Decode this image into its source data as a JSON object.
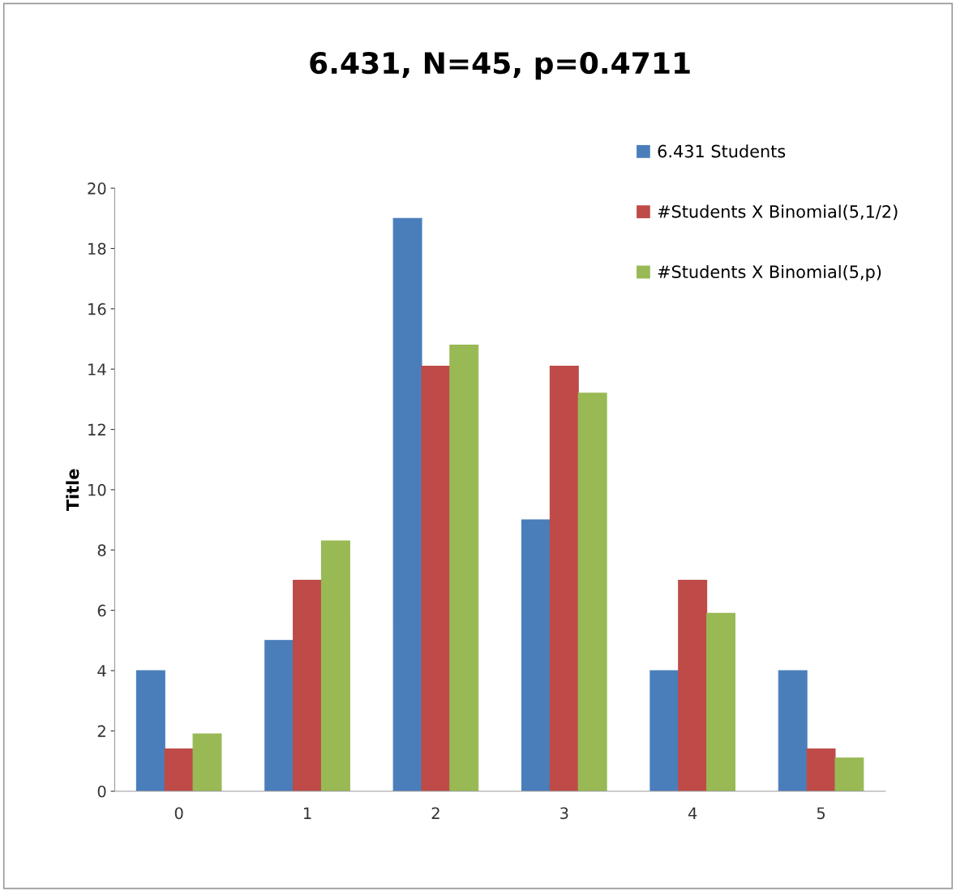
{
  "chart_data": {
    "type": "bar",
    "title": "6.431, N=45, p=0.4711",
    "ylabel": "Title",
    "categories": [
      "0",
      "1",
      "2",
      "3",
      "4",
      "5"
    ],
    "series": [
      {
        "name": "6.431 Students",
        "color": "#4a7ebb",
        "values": [
          4,
          5,
          19,
          9,
          4,
          4
        ]
      },
      {
        "name": "#Students X Binomial(5,1/2)",
        "color": "#be4b48",
        "values": [
          1.4,
          7.0,
          14.1,
          14.1,
          7.0,
          1.4
        ]
      },
      {
        "name": "#Students X Binomial(5,p)",
        "color": "#98b954",
        "values": [
          1.9,
          8.3,
          14.8,
          13.2,
          5.9,
          1.1
        ]
      }
    ],
    "ylim": [
      0,
      20
    ],
    "yticks": [
      0,
      2,
      4,
      6,
      8,
      10,
      12,
      14,
      16,
      18,
      20
    ],
    "grid": false,
    "legend": "top right"
  }
}
